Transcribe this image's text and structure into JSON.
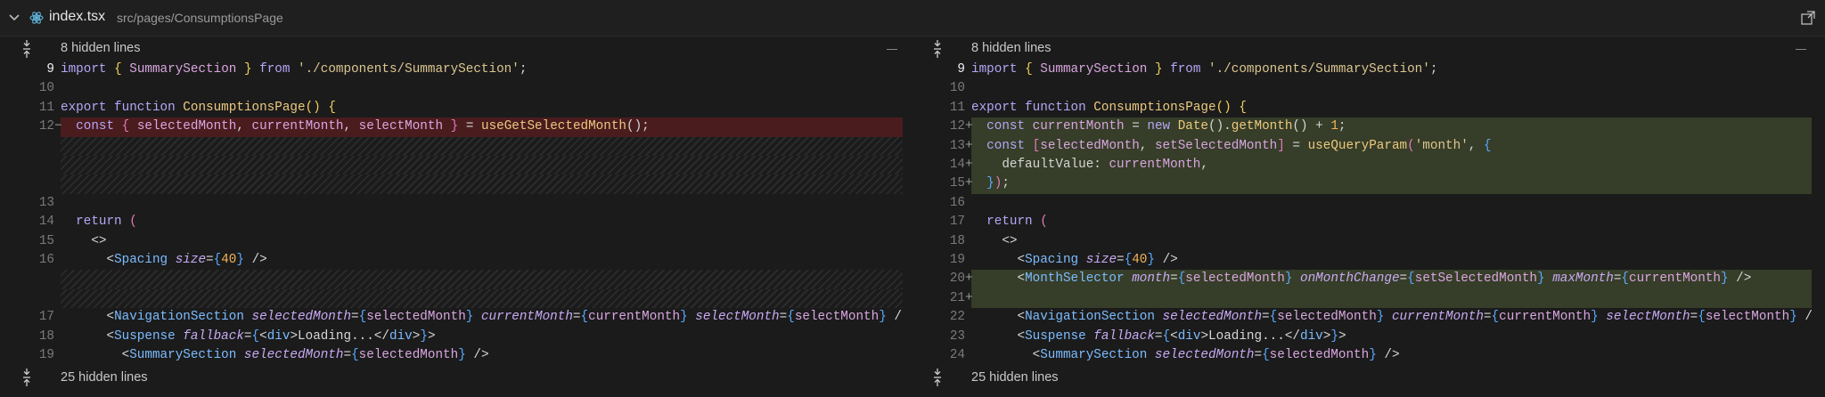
{
  "header": {
    "filename": "index.tsx",
    "path": "src/pages/ConsumptionsPage"
  },
  "left": {
    "hidden_top": "8 hidden lines",
    "hidden_bottom": "25 hidden lines",
    "rows": [
      {
        "kind": "ctx",
        "active": true,
        "number": "9",
        "tokens": [
          [
            "import ",
            "k"
          ],
          [
            "{ ",
            "y"
          ],
          [
            "SummarySection ",
            "v"
          ],
          [
            "} ",
            "y"
          ],
          [
            "from ",
            "k"
          ],
          [
            "'./components/SummarySection'",
            "s"
          ],
          [
            ";",
            "p"
          ]
        ]
      },
      {
        "kind": "ctx",
        "number": "10",
        "tokens": []
      },
      {
        "kind": "ctx",
        "number": "11",
        "tokens": [
          [
            "export function ",
            "k"
          ],
          [
            "ConsumptionsPage",
            "f"
          ],
          [
            "() ",
            "y"
          ],
          [
            "{",
            "y"
          ]
        ]
      },
      {
        "kind": "del",
        "number": "12",
        "marker": "−",
        "tokens": [
          [
            "  const ",
            "k"
          ],
          [
            "{ ",
            "pk"
          ],
          [
            "selectedMonth",
            "v"
          ],
          [
            ", ",
            "p"
          ],
          [
            "currentMonth",
            "v"
          ],
          [
            ", ",
            "p"
          ],
          [
            "selectMonth ",
            "v"
          ],
          [
            "} ",
            "pk"
          ],
          [
            "= ",
            "p"
          ],
          [
            "useGetSelectedMonth",
            "f"
          ],
          [
            "();",
            "p"
          ]
        ]
      },
      {
        "kind": "gap"
      },
      {
        "kind": "gap"
      },
      {
        "kind": "gap"
      },
      {
        "kind": "ctx",
        "number": "13",
        "tokens": []
      },
      {
        "kind": "ctx",
        "number": "14",
        "tokens": [
          [
            "  return ",
            "k"
          ],
          [
            "(",
            "pk"
          ]
        ]
      },
      {
        "kind": "ctx",
        "number": "15",
        "tokens": [
          [
            "    <>",
            "p"
          ]
        ]
      },
      {
        "kind": "ctx",
        "number": "16",
        "tokens": [
          [
            "      <",
            "p"
          ],
          [
            "Spacing ",
            "t"
          ],
          [
            "size",
            "a"
          ],
          [
            "=",
            "p"
          ],
          [
            "{",
            "bl"
          ],
          [
            "40",
            "n"
          ],
          [
            "}",
            "bl"
          ],
          [
            " />",
            "p"
          ]
        ]
      },
      {
        "kind": "gap"
      },
      {
        "kind": "gap"
      },
      {
        "kind": "ctx",
        "number": "17",
        "tokens": [
          [
            "      <",
            "p"
          ],
          [
            "NavigationSection ",
            "t"
          ],
          [
            "selectedMonth",
            "a"
          ],
          [
            "=",
            "p"
          ],
          [
            "{",
            "bl"
          ],
          [
            "selectedMonth",
            "v"
          ],
          [
            "} ",
            "bl"
          ],
          [
            "currentMonth",
            "a"
          ],
          [
            "=",
            "p"
          ],
          [
            "{",
            "bl"
          ],
          [
            "currentMonth",
            "v"
          ],
          [
            "} ",
            "bl"
          ],
          [
            "selectMonth",
            "a"
          ],
          [
            "=",
            "p"
          ],
          [
            "{",
            "bl"
          ],
          [
            "selectMonth",
            "v"
          ],
          [
            "} ",
            "bl"
          ],
          [
            "/",
            "p"
          ]
        ]
      },
      {
        "kind": "ctx",
        "number": "18",
        "tokens": [
          [
            "      <",
            "p"
          ],
          [
            "Suspense ",
            "t"
          ],
          [
            "fallback",
            "a"
          ],
          [
            "=",
            "p"
          ],
          [
            "{",
            "bl"
          ],
          [
            "<",
            "p"
          ],
          [
            "div",
            "t"
          ],
          [
            ">Loading...</",
            "p"
          ],
          [
            "div",
            "t"
          ],
          [
            ">",
            "p"
          ],
          [
            "}",
            "bl"
          ],
          [
            ">",
            "p"
          ]
        ]
      },
      {
        "kind": "ctx",
        "number": "19",
        "tokens": [
          [
            "        <",
            "p"
          ],
          [
            "SummarySection ",
            "t"
          ],
          [
            "selectedMonth",
            "a"
          ],
          [
            "=",
            "p"
          ],
          [
            "{",
            "bl"
          ],
          [
            "selectedMonth",
            "v"
          ],
          [
            "}",
            "bl"
          ],
          [
            " />",
            "p"
          ]
        ]
      }
    ]
  },
  "right": {
    "hidden_top": "8 hidden lines",
    "hidden_bottom": "25 hidden lines",
    "rows": [
      {
        "kind": "ctx",
        "active": true,
        "number": "9",
        "tokens": [
          [
            "import ",
            "k"
          ],
          [
            "{ ",
            "y"
          ],
          [
            "SummarySection ",
            "v"
          ],
          [
            "} ",
            "y"
          ],
          [
            "from ",
            "k"
          ],
          [
            "'./components/SummarySection'",
            "s"
          ],
          [
            ";",
            "p"
          ]
        ]
      },
      {
        "kind": "ctx",
        "number": "10",
        "tokens": []
      },
      {
        "kind": "ctx",
        "number": "11",
        "tokens": [
          [
            "export function ",
            "k"
          ],
          [
            "ConsumptionsPage",
            "f"
          ],
          [
            "() ",
            "y"
          ],
          [
            "{",
            "y"
          ]
        ]
      },
      {
        "kind": "add",
        "number": "12",
        "marker": "+",
        "tokens": [
          [
            "  const ",
            "k"
          ],
          [
            "currentMonth ",
            "v"
          ],
          [
            "= ",
            "p"
          ],
          [
            "new ",
            "k"
          ],
          [
            "Date",
            "f"
          ],
          [
            "().",
            "p"
          ],
          [
            "getMonth",
            "f"
          ],
          [
            "() + ",
            "p"
          ],
          [
            "1",
            "n"
          ],
          [
            ";",
            "p"
          ]
        ]
      },
      {
        "kind": "add",
        "number": "13",
        "marker": "+",
        "tokens": [
          [
            "  const ",
            "k"
          ],
          [
            "[",
            "pk"
          ],
          [
            "selectedMonth",
            "v"
          ],
          [
            ", ",
            "p"
          ],
          [
            "setSelectedMonth",
            "v"
          ],
          [
            "] ",
            "pk"
          ],
          [
            "= ",
            "p"
          ],
          [
            "useQueryParam",
            "f"
          ],
          [
            "(",
            "pk"
          ],
          [
            "'month'",
            "s"
          ],
          [
            ", ",
            "p"
          ],
          [
            "{",
            "bl"
          ]
        ]
      },
      {
        "kind": "add",
        "number": "14",
        "marker": "+",
        "tokens": [
          [
            "    defaultValue: ",
            "p"
          ],
          [
            "currentMonth",
            "v"
          ],
          [
            ",",
            "p"
          ]
        ]
      },
      {
        "kind": "add",
        "number": "15",
        "marker": "+",
        "tokens": [
          [
            "  ",
            "p"
          ],
          [
            "}",
            "bl"
          ],
          [
            ")",
            "pk"
          ],
          [
            ";",
            "p"
          ]
        ]
      },
      {
        "kind": "ctx",
        "number": "16",
        "tokens": []
      },
      {
        "kind": "ctx",
        "number": "17",
        "tokens": [
          [
            "  return ",
            "k"
          ],
          [
            "(",
            "pk"
          ]
        ]
      },
      {
        "kind": "ctx",
        "number": "18",
        "tokens": [
          [
            "    <>",
            "p"
          ]
        ]
      },
      {
        "kind": "ctx",
        "number": "19",
        "tokens": [
          [
            "      <",
            "p"
          ],
          [
            "Spacing ",
            "t"
          ],
          [
            "size",
            "a"
          ],
          [
            "=",
            "p"
          ],
          [
            "{",
            "bl"
          ],
          [
            "40",
            "n"
          ],
          [
            "}",
            "bl"
          ],
          [
            " />",
            "p"
          ]
        ]
      },
      {
        "kind": "add",
        "number": "20",
        "marker": "+",
        "tokens": [
          [
            "      <",
            "p"
          ],
          [
            "MonthSelector ",
            "t"
          ],
          [
            "month",
            "a"
          ],
          [
            "=",
            "p"
          ],
          [
            "{",
            "bl"
          ],
          [
            "selectedMonth",
            "v"
          ],
          [
            "} ",
            "bl"
          ],
          [
            "onMonthChange",
            "a"
          ],
          [
            "=",
            "p"
          ],
          [
            "{",
            "bl"
          ],
          [
            "setSelectedMonth",
            "v"
          ],
          [
            "} ",
            "bl"
          ],
          [
            "maxMonth",
            "a"
          ],
          [
            "=",
            "p"
          ],
          [
            "{",
            "bl"
          ],
          [
            "currentMonth",
            "v"
          ],
          [
            "} ",
            "bl"
          ],
          [
            "/>",
            "p"
          ]
        ]
      },
      {
        "kind": "add",
        "number": "21",
        "marker": "+",
        "tokens": []
      },
      {
        "kind": "ctx",
        "number": "22",
        "tokens": [
          [
            "      <",
            "p"
          ],
          [
            "NavigationSection ",
            "t"
          ],
          [
            "selectedMonth",
            "a"
          ],
          [
            "=",
            "p"
          ],
          [
            "{",
            "bl"
          ],
          [
            "selectedMonth",
            "v"
          ],
          [
            "} ",
            "bl"
          ],
          [
            "currentMonth",
            "a"
          ],
          [
            "=",
            "p"
          ],
          [
            "{",
            "bl"
          ],
          [
            "currentMonth",
            "v"
          ],
          [
            "} ",
            "bl"
          ],
          [
            "selectMonth",
            "a"
          ],
          [
            "=",
            "p"
          ],
          [
            "{",
            "bl"
          ],
          [
            "selectMonth",
            "v"
          ],
          [
            "} ",
            "bl"
          ],
          [
            "/",
            "p"
          ]
        ]
      },
      {
        "kind": "ctx",
        "number": "23",
        "tokens": [
          [
            "      <",
            "p"
          ],
          [
            "Suspense ",
            "t"
          ],
          [
            "fallback",
            "a"
          ],
          [
            "=",
            "p"
          ],
          [
            "{",
            "bl"
          ],
          [
            "<",
            "p"
          ],
          [
            "div",
            "t"
          ],
          [
            ">Loading...</",
            "p"
          ],
          [
            "div",
            "t"
          ],
          [
            ">",
            "p"
          ],
          [
            "}",
            "bl"
          ],
          [
            ">",
            "p"
          ]
        ]
      },
      {
        "kind": "ctx",
        "number": "24",
        "tokens": [
          [
            "        <",
            "p"
          ],
          [
            "SummarySection ",
            "t"
          ],
          [
            "selectedMonth",
            "a"
          ],
          [
            "=",
            "p"
          ],
          [
            "{",
            "bl"
          ],
          [
            "selectedMonth",
            "v"
          ],
          [
            "}",
            "bl"
          ],
          [
            " />",
            "p"
          ]
        ]
      }
    ]
  }
}
